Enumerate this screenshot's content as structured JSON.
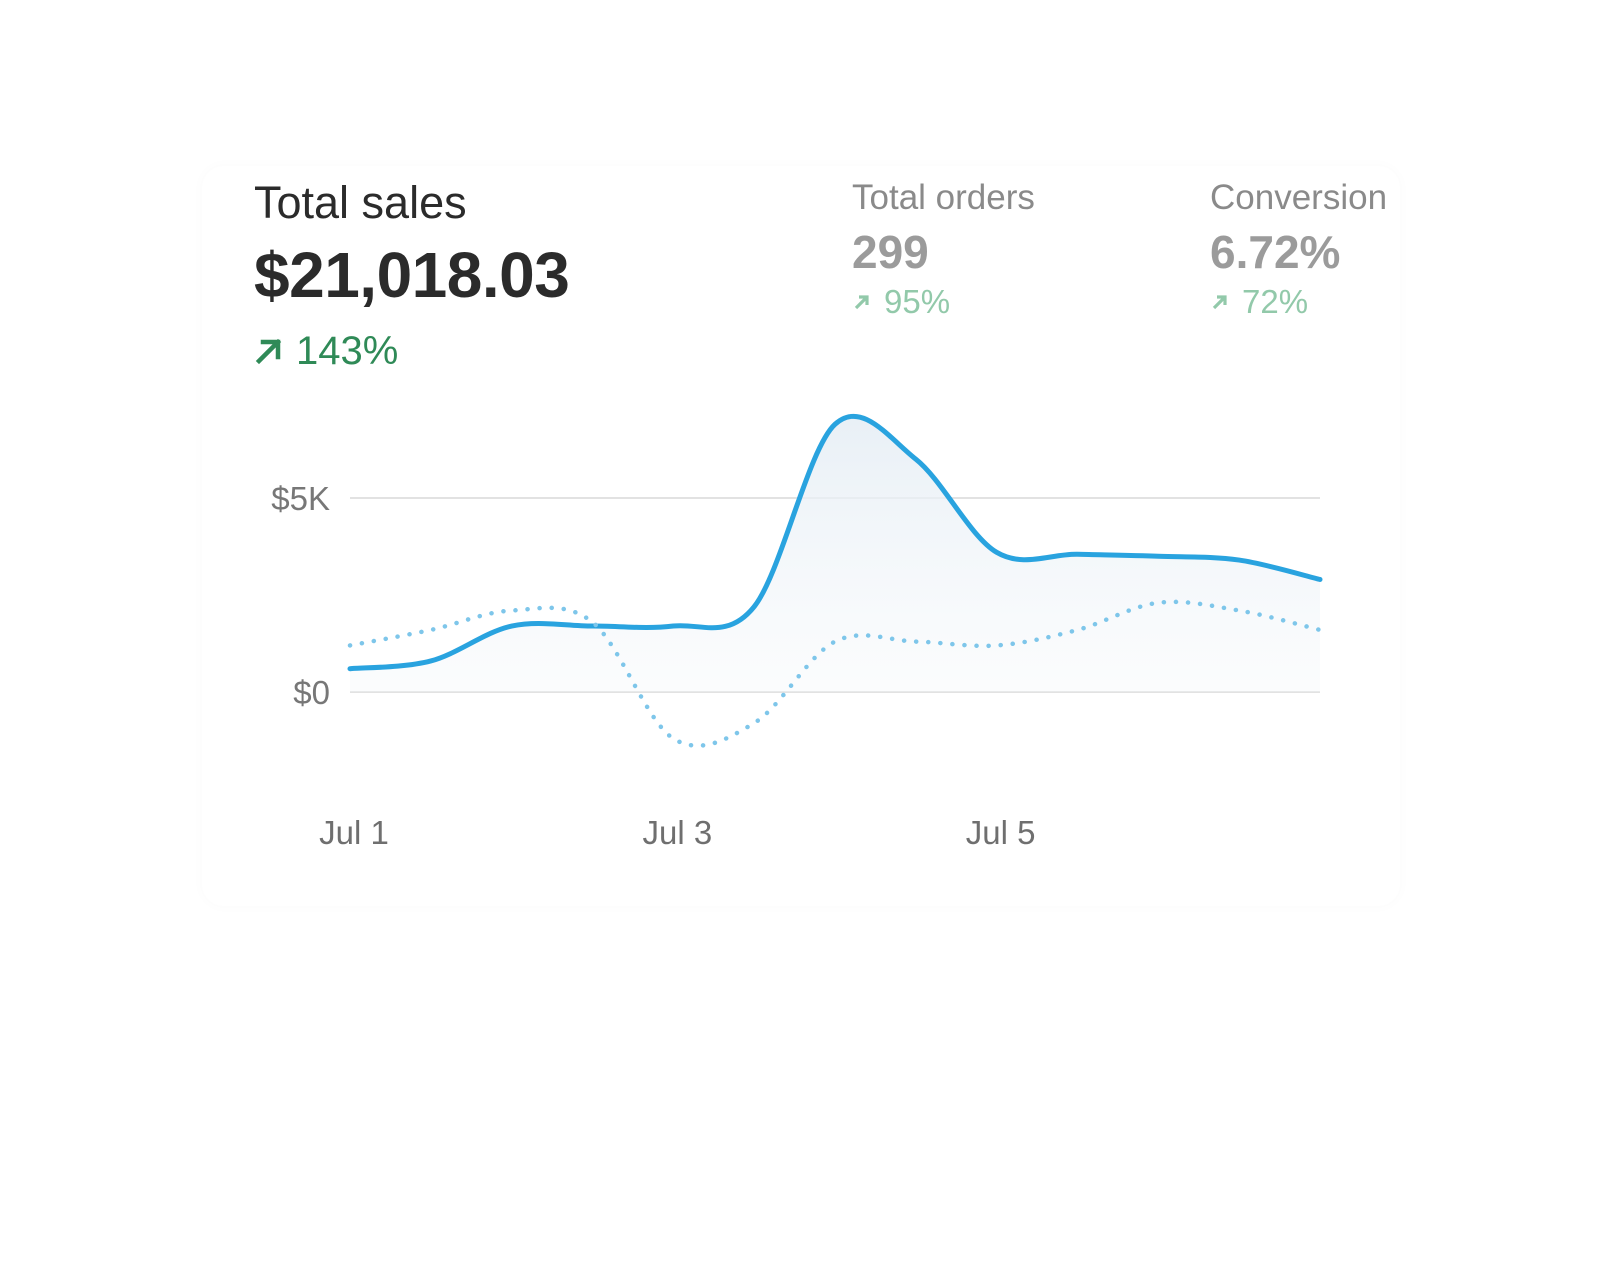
{
  "metrics": {
    "total_sales": {
      "label": "Total sales",
      "value": "$21,018.03",
      "change": "143%",
      "arrow_icon": "arrow-up-right-icon"
    },
    "total_orders": {
      "label": "Total orders",
      "value": "299",
      "change": "95%",
      "arrow_icon": "arrow-up-right-icon"
    },
    "conversion": {
      "label": "Conversion",
      "value": "6.72%",
      "change": "72%",
      "arrow_icon": "arrow-up-right-icon"
    }
  },
  "colors": {
    "positive": "#2f8a57",
    "positive_muted": "#92c9aa",
    "line_current": "#29a3df",
    "line_previous": "#7ec6ea",
    "grid": "#e2e2e2"
  },
  "chart_data": {
    "type": "line",
    "x": [
      "Jul 1",
      "Jul 1.5",
      "Jul 2",
      "Jul 2.5",
      "Jul 3",
      "Jul 3.5",
      "Jul 4",
      "Jul 4.5",
      "Jul 5",
      "Jul 5.5",
      "Jul 6",
      "Jul 6.5",
      "Jul 7"
    ],
    "xticks": [
      "Jul 1",
      "Jul 3",
      "Jul 5"
    ],
    "yticks": [
      "$0",
      "$5K"
    ],
    "ylim": [
      -1700,
      7500
    ],
    "grid": true,
    "series": [
      {
        "style": "solid",
        "values": [
          600,
          800,
          1700,
          1700,
          1700,
          2200,
          6900,
          6000,
          3600,
          3550,
          3500,
          3400,
          2900
        ]
      },
      {
        "style": "dotted",
        "values": [
          1200,
          1600,
          2100,
          1800,
          -1200,
          -800,
          1300,
          1300,
          1200,
          1600,
          2300,
          2100,
          1600
        ]
      }
    ]
  }
}
